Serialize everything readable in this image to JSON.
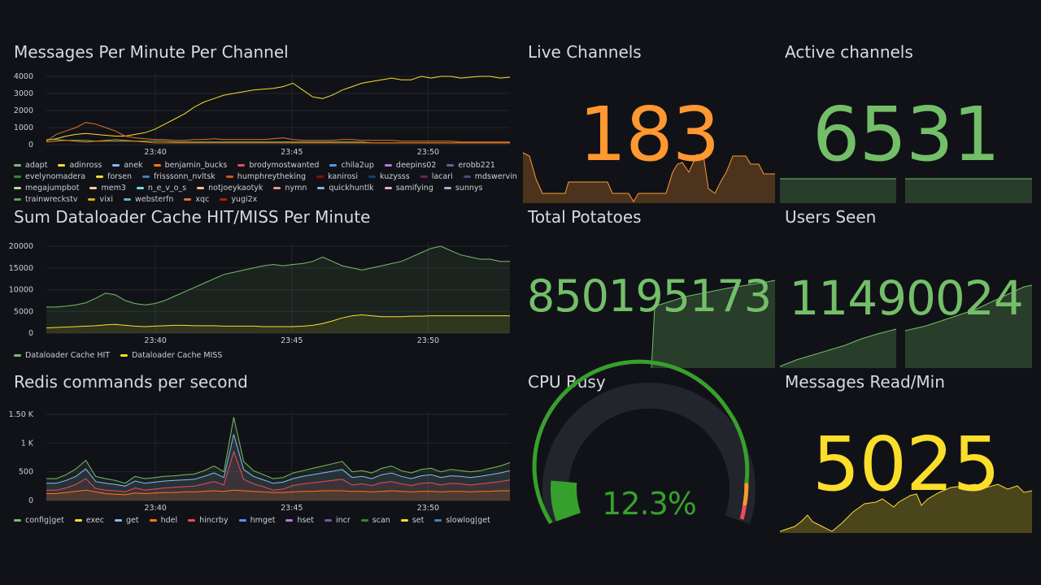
{
  "colors": {
    "bg": "#111217",
    "grid": "#23252b",
    "green": "#73bf69",
    "orange": "#ff9830",
    "yellow": "#fade2a",
    "gauge_green": "#37a02d"
  },
  "panels": {
    "messages": {
      "title": "Messages Per Minute Per Channel",
      "y_ticks": [
        "4000",
        "3000",
        "2000",
        "1000",
        "0"
      ],
      "x_ticks": [
        "23:40",
        "23:45",
        "23:50"
      ],
      "legend": [
        {
          "name": "adapt",
          "color": "#73bf69"
        },
        {
          "name": "adinross",
          "color": "#fade2a"
        },
        {
          "name": "anek",
          "color": "#8ab8ff"
        },
        {
          "name": "benjamin_bucks",
          "color": "#ff780a"
        },
        {
          "name": "brodymostwanted",
          "color": "#f2495c"
        },
        {
          "name": "chila2up",
          "color": "#5794f2"
        },
        {
          "name": "deepins02",
          "color": "#b877d9"
        },
        {
          "name": "erobb221",
          "color": "#705da0"
        },
        {
          "name": "evelynomadera",
          "color": "#37872d"
        },
        {
          "name": "forsen",
          "color": "#fade2a"
        },
        {
          "name": "frisssonn_nvltsk",
          "color": "#447ebc"
        },
        {
          "name": "humphreytheking",
          "color": "#c15c17"
        },
        {
          "name": "kanirosi",
          "color": "#890f02"
        },
        {
          "name": "kuzysss",
          "color": "#0a437c"
        },
        {
          "name": "lacari",
          "color": "#6d1f62"
        },
        {
          "name": "mdswervin",
          "color": "#584477"
        },
        {
          "name": "megajumpbot",
          "color": "#b7dbab"
        },
        {
          "name": "mem3",
          "color": "#f4d598"
        },
        {
          "name": "n_e_v_o_s",
          "color": "#70dbed"
        },
        {
          "name": "notjoeykaotyk",
          "color": "#f9ba8f"
        },
        {
          "name": "nymn",
          "color": "#f29191"
        },
        {
          "name": "quickhuntlk",
          "color": "#82b5d8"
        },
        {
          "name": "samifying",
          "color": "#e5a8e2"
        },
        {
          "name": "sunnys",
          "color": "#aea2e0"
        },
        {
          "name": "trainwreckstv",
          "color": "#629e51"
        },
        {
          "name": "vixi",
          "color": "#e5ac0e"
        },
        {
          "name": "websterfn",
          "color": "#64b0c8"
        },
        {
          "name": "xqc",
          "color": "#e0752d"
        },
        {
          "name": "yugi2x",
          "color": "#bf1b00"
        }
      ]
    },
    "dataloader": {
      "title": "Sum Dataloader Cache HIT/MISS Per Minute",
      "y_ticks": [
        "20000",
        "15000",
        "10000",
        "5000",
        "0"
      ],
      "x_ticks": [
        "23:40",
        "23:45",
        "23:50"
      ],
      "legend": [
        {
          "name": "Dataloader Cache HIT",
          "color": "#73bf69"
        },
        {
          "name": "Dataloader Cache MISS",
          "color": "#fade2a"
        }
      ]
    },
    "redis": {
      "title": "Redis commands per second",
      "y_ticks": [
        "1.50 K",
        "1 K",
        "500",
        "0"
      ],
      "x_ticks": [
        "23:40",
        "23:45",
        "23:50"
      ],
      "legend": [
        {
          "name": "config|get",
          "color": "#73bf69"
        },
        {
          "name": "exec",
          "color": "#fade2a"
        },
        {
          "name": "get",
          "color": "#8ab8ff"
        },
        {
          "name": "hdel",
          "color": "#ff780a"
        },
        {
          "name": "hincrby",
          "color": "#f2495c"
        },
        {
          "name": "hmget",
          "color": "#5794f2"
        },
        {
          "name": "hset",
          "color": "#b877d9"
        },
        {
          "name": "incr",
          "color": "#705da0"
        },
        {
          "name": "scan",
          "color": "#37872d"
        },
        {
          "name": "set",
          "color": "#fade2a"
        },
        {
          "name": "slowlog|get",
          "color": "#447ebc"
        }
      ]
    },
    "live_channels": {
      "title": "Live Channels",
      "value": "183",
      "color": "#ff9830"
    },
    "active_channels": {
      "title": "Active channels",
      "value": "6531",
      "color": "#73bf69"
    },
    "total_potatoes": {
      "title": "Total Potatoes",
      "value": "850195173",
      "color": "#73bf69"
    },
    "users_seen": {
      "title": "Users Seen",
      "value": "11490024",
      "color": "#73bf69"
    },
    "cpu_busy": {
      "title": "CPU Busy",
      "value": "12.3%",
      "percent": 12.3,
      "color": "#37a02d"
    },
    "messages_read": {
      "title": "Messages Read/Min",
      "value": "5025",
      "color": "#fade2a"
    }
  },
  "chart_data": [
    {
      "type": "line",
      "title": "Messages Per Minute Per Channel",
      "x_range": [
        "23:36",
        "23:53"
      ],
      "ylim": [
        0,
        4000
      ],
      "series": [
        {
          "name": "forsen",
          "color": "#fade2a",
          "values": [
            250,
            350,
            500,
            600,
            650,
            600,
            550,
            500,
            500,
            600,
            700,
            900,
            1200,
            1500,
            1800,
            2200,
            2500,
            2700,
            2900,
            3000,
            3100,
            3200,
            3250,
            3300,
            3400,
            3600,
            3200,
            2800,
            2700,
            2900,
            3200,
            3400,
            3600,
            3700,
            3800,
            3900,
            3800,
            3800,
            4000,
            3900,
            4100,
            4000,
            3900,
            3950,
            4000,
            4000,
            3900,
            3950
          ]
        },
        {
          "name": "xqc",
          "color": "#e0752d",
          "values": [
            200,
            600,
            800,
            1000,
            1300,
            1200,
            1000,
            800,
            500,
            400,
            350,
            300,
            300,
            250,
            250,
            300,
            300,
            350,
            300,
            300,
            300,
            300,
            300,
            350,
            400,
            300,
            250,
            250,
            250,
            250,
            300,
            300,
            250,
            250,
            250,
            250,
            200,
            200,
            200,
            200,
            200,
            200,
            150,
            150,
            150,
            150,
            150,
            150
          ]
        },
        {
          "name": "adapt",
          "color": "#73bf69",
          "values": [
            300,
            300,
            250,
            250,
            250,
            200,
            200,
            200,
            200,
            200,
            200,
            200,
            200,
            150,
            150,
            150,
            150,
            150,
            150,
            150,
            150,
            150,
            150,
            150,
            150,
            150,
            150,
            150,
            150,
            150,
            150,
            150,
            150,
            100,
            100,
            100,
            100,
            100,
            100,
            100,
            100,
            100,
            100,
            100,
            100,
            100,
            100,
            100
          ]
        },
        {
          "name": "benjamin_bucks",
          "color": "#ff780a",
          "values": [
            150,
            200,
            250,
            200,
            150,
            200,
            250,
            300,
            250,
            200,
            150,
            100,
            100,
            100,
            100,
            100,
            100,
            100,
            100,
            100,
            100,
            100,
            100,
            100,
            100,
            100,
            100,
            100,
            100,
            100,
            100,
            100,
            100,
            100,
            100,
            100,
            100,
            100,
            100,
            100,
            100,
            100,
            100,
            100,
            100,
            100,
            100,
            100
          ]
        }
      ]
    },
    {
      "type": "area",
      "title": "Sum Dataloader Cache HIT/MISS Per Minute",
      "x_range": [
        "23:36",
        "23:53"
      ],
      "ylim": [
        0,
        20000
      ],
      "series": [
        {
          "name": "Dataloader Cache HIT",
          "color": "#73bf69",
          "values": [
            6000,
            6000,
            6200,
            6500,
            7000,
            8000,
            9200,
            8800,
            7500,
            6800,
            6500,
            6800,
            7500,
            8500,
            9500,
            10500,
            11500,
            12500,
            13500,
            14000,
            14500,
            15000,
            15500,
            15800,
            15500,
            15800,
            16000,
            16500,
            17500,
            16500,
            15500,
            15000,
            14500,
            15000,
            15500,
            16000,
            16500,
            17500,
            18500,
            19500,
            20500,
            19000,
            18000,
            17500,
            17000,
            17000,
            16500,
            16500
          ]
        },
        {
          "name": "Dataloader Cache MISS",
          "color": "#fade2a",
          "values": [
            1200,
            1300,
            1400,
            1500,
            1600,
            1700,
            1900,
            2000,
            1800,
            1600,
            1500,
            1600,
            1700,
            1800,
            1800,
            1700,
            1700,
            1700,
            1600,
            1600,
            1600,
            1600,
            1500,
            1500,
            1500,
            1500,
            1600,
            1800,
            2200,
            2800,
            3500,
            4000,
            4200,
            4000,
            3800,
            3800,
            3800,
            3900,
            3900,
            4000,
            4000,
            4000,
            4000,
            4000,
            4000,
            4000,
            4000,
            4000
          ]
        }
      ]
    },
    {
      "type": "area",
      "title": "Redis commands per second",
      "x_range": [
        "23:36",
        "23:53"
      ],
      "ylim": [
        0,
        1500
      ],
      "series": [
        {
          "name": "config|get",
          "color": "#73bf69",
          "values": [
            380,
            380,
            450,
            550,
            700,
            420,
            380,
            350,
            300,
            420,
            380,
            400,
            420,
            430,
            450,
            460,
            520,
            600,
            500,
            1450,
            680,
            520,
            450,
            380,
            400,
            480,
            520,
            560,
            600,
            640,
            680,
            500,
            520,
            480,
            560,
            600,
            520,
            480,
            540,
            560,
            500,
            540,
            520,
            500,
            520,
            560,
            600,
            660
          ]
        },
        {
          "name": "get",
          "color": "#8ab8ff",
          "values": [
            300,
            300,
            350,
            420,
            550,
            330,
            300,
            280,
            250,
            340,
            300,
            320,
            340,
            350,
            360,
            370,
            420,
            480,
            400,
            1150,
            540,
            420,
            360,
            300,
            320,
            380,
            420,
            450,
            480,
            510,
            540,
            400,
            420,
            380,
            450,
            480,
            420,
            380,
            430,
            450,
            400,
            430,
            420,
            400,
            420,
            450,
            480,
            520
          ]
        },
        {
          "name": "hincrby",
          "color": "#f2495c",
          "values": [
            180,
            180,
            220,
            280,
            380,
            210,
            180,
            170,
            150,
            220,
            180,
            200,
            220,
            230,
            240,
            250,
            290,
            330,
            270,
            850,
            370,
            290,
            240,
            180,
            200,
            260,
            290,
            310,
            330,
            350,
            370,
            270,
            290,
            260,
            310,
            330,
            290,
            260,
            300,
            310,
            270,
            300,
            290,
            270,
            290,
            310,
            330,
            360
          ]
        },
        {
          "name": "hdel",
          "color": "#ff780a",
          "values": [
            120,
            120,
            140,
            160,
            180,
            150,
            120,
            110,
            100,
            130,
            120,
            130,
            140,
            140,
            150,
            150,
            160,
            170,
            160,
            180,
            170,
            160,
            150,
            140,
            140,
            150,
            160,
            160,
            170,
            170,
            170,
            160,
            160,
            150,
            160,
            170,
            160,
            150,
            160,
            160,
            150,
            160,
            160,
            150,
            160,
            160,
            170,
            170
          ]
        }
      ]
    }
  ]
}
